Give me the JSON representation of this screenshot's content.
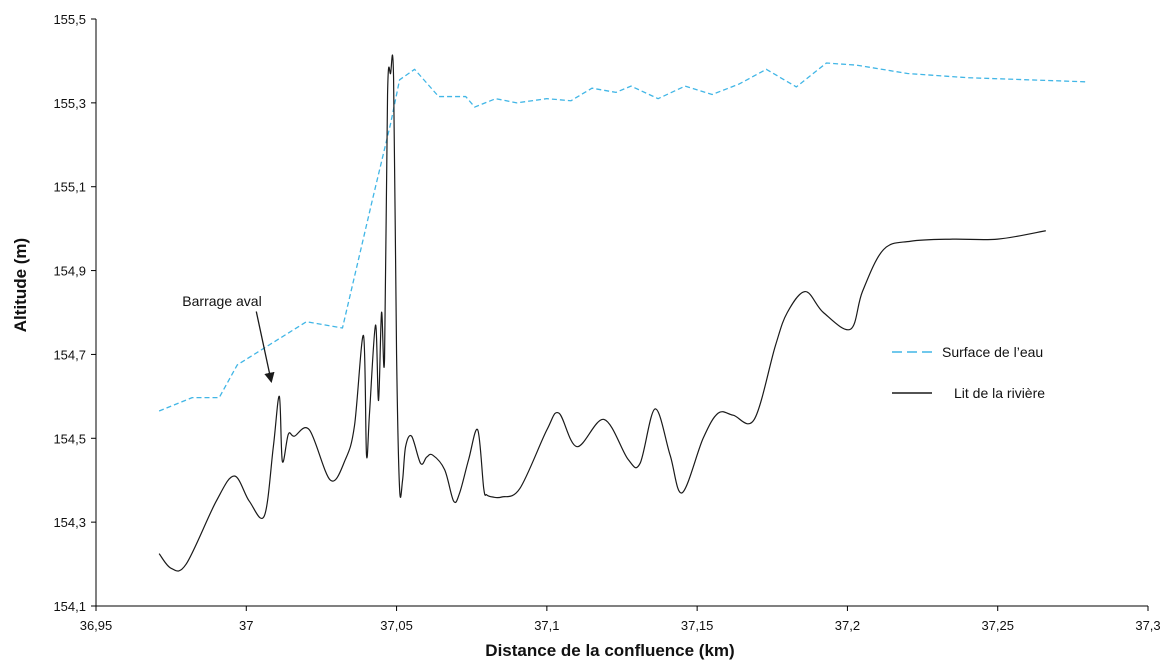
{
  "chart_data": {
    "type": "line",
    "xlabel": "Distance de la confluence (km)",
    "ylabel": "Altitude (m)",
    "xlim": [
      36.95,
      37.3
    ],
    "ylim": [
      154.1,
      155.5
    ],
    "x_ticks": [
      "36,95",
      "37",
      "37,05",
      "37,1",
      "37,15",
      "37,2",
      "37,25",
      "37,3"
    ],
    "y_ticks": [
      "154,1",
      "154,3",
      "154,5",
      "154,7",
      "154,9",
      "155,1",
      "155,3",
      "155,5"
    ],
    "grid": false,
    "legend_position": "right",
    "annotation": {
      "text": "Barrage aval",
      "target": [
        37.009,
        154.63
      ],
      "text_at": [
        37.0,
        154.85
      ]
    },
    "series": [
      {
        "name": "Surface de l’eau",
        "color": "#41b6e6",
        "dash": true,
        "x": [
          36.971,
          36.982,
          36.991,
          36.997,
          37.02,
          37.032,
          37.042,
          37.048,
          37.051,
          37.056,
          37.064,
          37.073,
          37.076,
          37.083,
          37.09,
          37.1,
          37.108,
          37.115,
          37.123,
          37.128,
          37.137,
          37.146,
          37.155,
          37.164,
          37.173,
          37.183,
          37.193,
          37.203,
          37.22,
          37.24,
          37.28
        ],
        "y": [
          154.565,
          154.597,
          154.597,
          154.675,
          154.778,
          154.763,
          155.07,
          155.25,
          155.355,
          155.38,
          155.315,
          155.315,
          155.29,
          155.31,
          155.3,
          155.31,
          155.305,
          155.335,
          155.325,
          155.34,
          155.31,
          155.34,
          155.32,
          155.345,
          155.38,
          155.338,
          155.395,
          155.39,
          155.37,
          155.36,
          155.35
        ]
      },
      {
        "name": "Lit de la rivière",
        "color": "#1a1a1a",
        "dash": false,
        "x": [
          36.971,
          36.975,
          36.98,
          36.99,
          36.996,
          37.001,
          37.006,
          37.009,
          37.011,
          37.012,
          37.014,
          37.016,
          37.021,
          37.028,
          37.033,
          37.036,
          37.039,
          37.04,
          37.041,
          37.043,
          37.044,
          37.045,
          37.046,
          37.047,
          37.048,
          37.049,
          37.05,
          37.051,
          37.052,
          37.053,
          37.055,
          37.058,
          37.06,
          37.062,
          37.066,
          37.069,
          37.071,
          37.074,
          37.077,
          37.079,
          37.08,
          37.082,
          37.085,
          37.091,
          37.1,
          37.104,
          37.11,
          37.119,
          37.127,
          37.131,
          37.136,
          37.141,
          37.145,
          37.152,
          37.157,
          37.162,
          37.169,
          37.176,
          37.18,
          37.186,
          37.192,
          37.201,
          37.205,
          37.212,
          37.221,
          37.235,
          37.25,
          37.266
        ],
        "y": [
          154.225,
          154.19,
          154.2,
          154.35,
          154.41,
          154.35,
          154.315,
          154.48,
          154.6,
          154.445,
          154.51,
          154.505,
          154.52,
          154.4,
          154.45,
          154.53,
          154.745,
          154.46,
          154.56,
          154.77,
          154.59,
          154.8,
          154.69,
          155.32,
          155.37,
          155.36,
          154.7,
          154.38,
          154.4,
          154.48,
          154.505,
          154.44,
          154.455,
          154.46,
          154.425,
          154.35,
          154.37,
          154.45,
          154.52,
          154.38,
          154.365,
          154.36,
          154.36,
          154.38,
          154.52,
          154.56,
          154.48,
          154.545,
          154.45,
          154.44,
          154.57,
          154.46,
          154.37,
          154.5,
          154.56,
          154.555,
          154.545,
          154.72,
          154.8,
          154.85,
          154.8,
          154.76,
          154.85,
          154.95,
          154.97,
          154.975,
          154.975,
          154.995
        ]
      }
    ]
  }
}
